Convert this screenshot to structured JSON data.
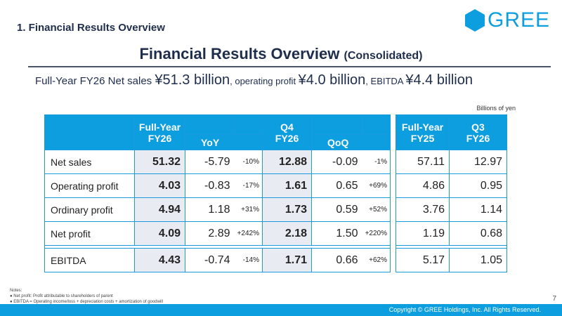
{
  "section_title": "1. Financial Results Overview",
  "logo": {
    "text": "GREE",
    "color": "#0d9ee0"
  },
  "title": {
    "main": "Financial Results Overview",
    "sub": "(Consolidated)"
  },
  "headline": {
    "p1": "Full-Year FY26 Net sales ",
    "v1": "¥51.3 billion",
    "p2": ", operating profit ",
    "v2": "¥4.0 billion",
    "p3": ", EBITDA ",
    "v3": "¥4.4 billion"
  },
  "unit_note": "Billions of yen",
  "table": {
    "headers": {
      "fy26": "Full-Year FY26",
      "fy26_line1": "Full-Year",
      "fy26_line2": "FY26",
      "yoy": "YoY",
      "q4_line1": "Q4",
      "q4_line2": "FY26",
      "qoq": "QoQ",
      "fy25_line1": "Full-Year",
      "fy25_line2": "FY25",
      "q3_line1": "Q3",
      "q3_line2": "FY26"
    },
    "rows": [
      {
        "label": "Net sales",
        "fy26": "51.32",
        "yoy": "-5.79",
        "yoy_pct": "-10%",
        "q4": "12.88",
        "qoq": "-0.09",
        "qoq_pct": "-1%",
        "fy25": "57.11",
        "q3": "12.97"
      },
      {
        "label": "Operating profit",
        "fy26": "4.03",
        "yoy": "-0.83",
        "yoy_pct": "-17%",
        "q4": "1.61",
        "qoq": "0.65",
        "qoq_pct": "+69%",
        "fy25": "4.86",
        "q3": "0.95"
      },
      {
        "label": "Ordinary profit",
        "fy26": "4.94",
        "yoy": "1.18",
        "yoy_pct": "+31%",
        "q4": "1.73",
        "qoq": "0.59",
        "qoq_pct": "+52%",
        "fy25": "3.76",
        "q3": "1.14"
      },
      {
        "label": "Net profit",
        "fy26": "4.09",
        "yoy": "2.89",
        "yoy_pct": "+242%",
        "q4": "2.18",
        "qoq": "1.50",
        "qoq_pct": "+220%",
        "fy25": "1.19",
        "q3": "0.68"
      },
      {
        "label": "EBITDA",
        "fy26": "4.43",
        "yoy": "-0.74",
        "yoy_pct": "-14%",
        "q4": "1.71",
        "qoq": "0.66",
        "qoq_pct": "+62%",
        "fy25": "5.17",
        "q3": "1.05"
      }
    ]
  },
  "notes": {
    "heading": "Notes:",
    "items": [
      "Net profit: Profit attributable to shareholders of parent",
      "EBITDA = Operating income/loss + depreciation costs + amortization of goodwill"
    ]
  },
  "page_number": "7",
  "footer": "Copyright © GREE Holdings, Inc. All Rights Reserved.",
  "colors": {
    "accent": "#0d9ee0",
    "title": "#1f2d4d",
    "highlight_cell": "#e8ecf2"
  }
}
